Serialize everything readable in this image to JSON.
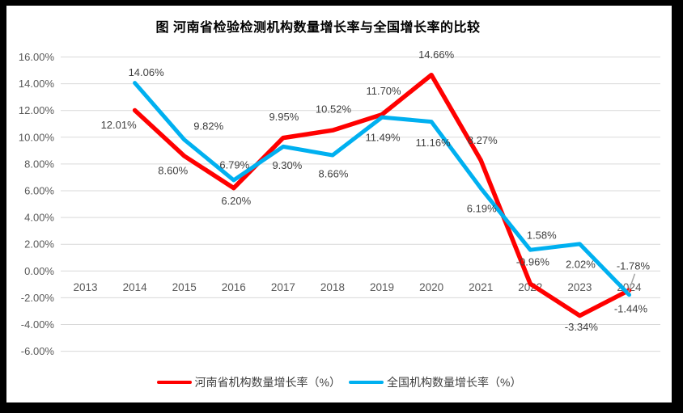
{
  "window": {
    "frame_color": "#000000",
    "background_color": "#FFFFFF"
  },
  "chart_data": {
    "type": "line",
    "title": "图  河南省检验检测机构数量增长率与全国增长率的比较",
    "xlabel": "",
    "ylabel": "",
    "categories": [
      "2013",
      "2014",
      "2015",
      "2016",
      "2017",
      "2018",
      "2019",
      "2020",
      "2021",
      "2022",
      "2023",
      "2024"
    ],
    "y_ticks": [
      "16.00%",
      "14.00%",
      "12.00%",
      "10.00%",
      "8.00%",
      "6.00%",
      "4.00%",
      "2.00%",
      "0.00%",
      "-2.00%",
      "-4.00%",
      "-6.00%"
    ],
    "ylim": [
      -6,
      16
    ],
    "y_step": 2,
    "grid": true,
    "legend_position": "bottom",
    "colors": {
      "gridline": "#D9D9D9",
      "axis_text": "#595959",
      "label_text": "#3F3F3F",
      "leader_line": "#A6A6A6"
    },
    "series": [
      {
        "id": "henan",
        "name": "河南省机构数量增长率（%）",
        "color": "#FF0000",
        "stroke_width": 5.5,
        "values": [
          null,
          12.01,
          8.6,
          6.2,
          9.95,
          10.52,
          11.7,
          14.66,
          8.27,
          -0.96,
          -3.34,
          -1.44
        ],
        "labels": [
          null,
          "12.01%",
          "8.60%",
          "6.20%",
          "9.95%",
          "10.52%",
          "11.70%",
          "14.66%",
          "8.27%",
          "-0.96%",
          "-3.34%",
          "-1.44%"
        ],
        "label_offsets": [
          null,
          [
            -20,
            18
          ],
          [
            -14,
            18
          ],
          [
            3,
            16
          ],
          [
            1,
            -26
          ],
          [
            1,
            -26
          ],
          [
            2,
            -29
          ],
          [
            6,
            -25
          ],
          [
            2,
            -25
          ],
          [
            3,
            -27
          ],
          [
            2,
            14
          ],
          [
            2,
            23
          ]
        ]
      },
      {
        "id": "national",
        "name": "全国机构数量增长率（%）",
        "color": "#00B0F0",
        "stroke_width": 5,
        "values": [
          null,
          14.06,
          9.82,
          6.79,
          9.3,
          8.66,
          11.49,
          11.16,
          6.19,
          1.58,
          2.02,
          -1.78
        ],
        "labels": [
          null,
          "14.06%",
          "9.82%",
          "6.79%",
          "9.30%",
          "8.66%",
          "11.49%",
          "11.16%",
          "6.19%",
          "1.58%",
          "2.02%",
          "-1.78%"
        ],
        "label_offsets": [
          null,
          [
            14,
            -13
          ],
          [
            30,
            -17
          ],
          [
            1,
            -19
          ],
          [
            5,
            23
          ],
          [
            1,
            23
          ],
          [
            1,
            25
          ],
          [
            2,
            26
          ],
          [
            1,
            25
          ],
          [
            14,
            -18
          ],
          [
            1,
            25
          ],
          [
            5,
            -36
          ]
        ]
      }
    ],
    "leader": {
      "series_index": 1,
      "category_index": 11
    }
  }
}
